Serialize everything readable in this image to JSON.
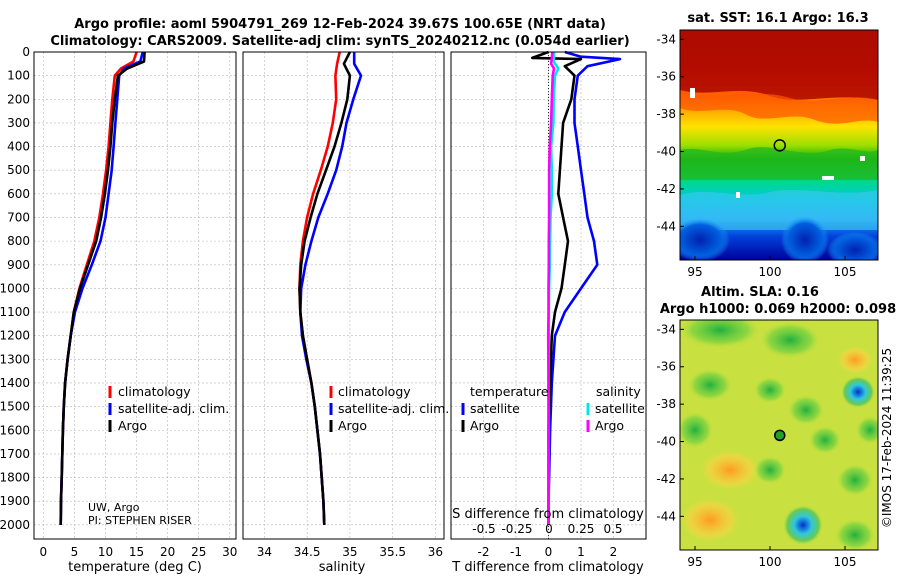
{
  "header": {
    "title_line1": "Argo profile: aoml 5904791_269 12-Feb-2024 39.67S 100.65E (NRT data)",
    "title_line2": "Climatology: CARS2009. Satellite-adj clim: synTS_20240212.nc (0.054d earlier)"
  },
  "chart_data": [
    {
      "type": "line",
      "name": "temperature-profile",
      "xlabel": "temperature (deg C)",
      "xlim": [
        -1.5,
        31
      ],
      "xticks": [
        0,
        5,
        10,
        15,
        20,
        25,
        30
      ],
      "ylim": [
        2060,
        0
      ],
      "yticks": [
        0,
        100,
        200,
        300,
        400,
        500,
        600,
        700,
        800,
        900,
        1000,
        1100,
        1200,
        1300,
        1400,
        1500,
        1600,
        1700,
        1800,
        1900,
        2000
      ],
      "legend": [
        "climatology",
        "satellite-adj. clim.",
        "Argo"
      ],
      "credit": [
        "UW, Argo",
        "PI: STEPHEN RISER"
      ],
      "series": [
        {
          "name": "climatology",
          "color": "#ff0000",
          "x": [
            15.0,
            14.5,
            12.5,
            11.5,
            11.1,
            10.8,
            10.5,
            10.1,
            9.6,
            9.0,
            8.2,
            7.0,
            5.8,
            4.9,
            4.4,
            3.9,
            3.5,
            3.3,
            3.15,
            3.05,
            2.95,
            2.85,
            2.8
          ],
          "y": [
            0,
            40,
            70,
            100,
            200,
            300,
            400,
            500,
            600,
            700,
            800,
            900,
            1000,
            1100,
            1200,
            1300,
            1400,
            1500,
            1600,
            1700,
            1800,
            1900,
            2000
          ]
        },
        {
          "name": "satellite-adj. clim.",
          "color": "#0000ff",
          "x": [
            16.0,
            15.6,
            13.0,
            12.2,
            11.9,
            11.6,
            11.3,
            11.0,
            10.5,
            10.0,
            9.2,
            7.8,
            6.3,
            5.1,
            4.4,
            3.9,
            3.5,
            3.3,
            3.15,
            3.05,
            2.95,
            2.85,
            2.8
          ],
          "y": [
            0,
            40,
            70,
            100,
            200,
            300,
            400,
            500,
            600,
            700,
            800,
            900,
            1000,
            1100,
            1200,
            1300,
            1400,
            1500,
            1600,
            1700,
            1800,
            1900,
            2000
          ]
        },
        {
          "name": "Argo",
          "color": "#000000",
          "x": [
            16.3,
            16.2,
            13.5,
            12.0,
            11.5,
            11.1,
            10.8,
            10.4,
            9.9,
            9.3,
            8.5,
            7.2,
            5.9,
            4.9,
            4.4,
            3.9,
            3.5,
            3.3,
            3.15,
            3.05,
            2.95,
            2.85,
            2.8
          ],
          "y": [
            0,
            40,
            70,
            100,
            200,
            300,
            400,
            500,
            600,
            700,
            800,
            900,
            1000,
            1100,
            1200,
            1300,
            1400,
            1500,
            1600,
            1700,
            1800,
            1900,
            2000
          ]
        }
      ]
    },
    {
      "type": "line",
      "name": "salinity-profile",
      "xlabel": "salinity",
      "xlim": [
        33.75,
        36.1
      ],
      "xticks": [
        34,
        34.5,
        35,
        35.5,
        36
      ],
      "ylim": [
        2060,
        0
      ],
      "legend": [
        "climatology",
        "satellite-adj. clim.",
        "Argo"
      ],
      "series": [
        {
          "name": "climatology",
          "color": "#ff0000",
          "x": [
            34.88,
            34.85,
            34.83,
            34.84,
            34.8,
            34.74,
            34.66,
            34.57,
            34.5,
            34.45,
            34.42,
            34.41,
            34.42,
            34.45,
            34.5,
            34.55,
            34.59,
            34.62,
            34.65,
            34.67,
            34.69,
            34.7
          ],
          "y": [
            0,
            50,
            100,
            200,
            300,
            400,
            500,
            600,
            700,
            800,
            900,
            1000,
            1100,
            1200,
            1300,
            1400,
            1500,
            1600,
            1700,
            1800,
            1900,
            2000
          ]
        },
        {
          "name": "satellite-adj. clim.",
          "color": "#0000ff",
          "x": [
            35.05,
            35.05,
            35.13,
            35.04,
            34.96,
            34.91,
            34.84,
            34.74,
            34.63,
            34.55,
            34.48,
            34.43,
            34.42,
            34.44,
            34.49,
            34.55,
            34.59,
            34.62,
            34.65,
            34.67,
            34.69,
            34.7
          ],
          "y": [
            0,
            50,
            100,
            200,
            300,
            400,
            500,
            600,
            700,
            800,
            900,
            1000,
            1100,
            1200,
            1300,
            1400,
            1500,
            1600,
            1700,
            1800,
            1900,
            2000
          ]
        },
        {
          "name": "Argo",
          "color": "#000000",
          "x": [
            35.0,
            34.93,
            35.0,
            34.97,
            34.9,
            34.82,
            34.72,
            34.62,
            34.54,
            34.47,
            34.43,
            34.41,
            34.42,
            34.45,
            34.5,
            34.55,
            34.59,
            34.62,
            34.65,
            34.67,
            34.69,
            34.7
          ],
          "y": [
            0,
            50,
            100,
            200,
            300,
            400,
            500,
            600,
            700,
            800,
            900,
            1000,
            1100,
            1200,
            1300,
            1400,
            1500,
            1600,
            1700,
            1800,
            1900,
            2000
          ]
        }
      ]
    },
    {
      "type": "line",
      "name": "difference-profile",
      "xlabel": "T difference from climatology",
      "xlabel_top": "S difference from climatology",
      "xlim": [
        -3.0,
        3.0
      ],
      "xticks": [
        -2,
        -1,
        0,
        1,
        2
      ],
      "s_ticks": [
        "-0.5",
        "-0.25",
        "0",
        "0.25",
        "0.5"
      ],
      "ylim": [
        2060,
        0
      ],
      "legend_titles": [
        "temperature",
        "salinity"
      ],
      "legend_temperature": [
        "satellite",
        "Argo"
      ],
      "legend_salinity": [
        "satellite",
        "Argo"
      ],
      "series": [
        {
          "name": "temperature satellite",
          "color": "#0000ff",
          "x": [
            0.5,
            1.0,
            2.2,
            1.2,
            0.9,
            0.8,
            0.8,
            0.9,
            1.0,
            1.1,
            1.2,
            1.4,
            1.5,
            1.0,
            0.5,
            0.2,
            0.1,
            0.05,
            0.02,
            0.0,
            0.0
          ],
          "y": [
            0,
            20,
            30,
            60,
            100,
            200,
            300,
            400,
            500,
            600,
            700,
            800,
            900,
            1000,
            1100,
            1200,
            1400,
            1600,
            1800,
            1900,
            2000
          ]
        },
        {
          "name": "temperature Argo",
          "color": "#000000",
          "x": [
            0.0,
            -0.5,
            1.0,
            0.5,
            0.8,
            0.7,
            0.45,
            0.4,
            0.35,
            0.3,
            0.45,
            0.6,
            0.5,
            0.4,
            0.2,
            0.1,
            0.05,
            0.0,
            0.0,
            0.0
          ],
          "y": [
            0,
            25,
            30,
            60,
            100,
            200,
            300,
            400,
            500,
            600,
            700,
            800,
            900,
            1000,
            1100,
            1200,
            1400,
            1600,
            1800,
            2000
          ]
        },
        {
          "name": "salinity satellite",
          "color": "#00e5e5",
          "x": [
            0.17,
            0.16,
            0.3,
            0.2,
            0.16,
            0.15,
            0.08,
            0.1,
            0.1,
            0.06,
            0.05,
            0.04,
            0.02,
            0.01,
            0.01,
            0.0,
            0.0,
            0.0,
            0.0
          ],
          "y": [
            0,
            40,
            70,
            100,
            200,
            300,
            400,
            500,
            600,
            700,
            800,
            900,
            1000,
            1100,
            1200,
            1400,
            1600,
            1800,
            2000
          ]
        },
        {
          "name": "salinity Argo",
          "color": "#ff00ff",
          "x": [
            0.12,
            0.08,
            0.17,
            0.13,
            0.1,
            0.08,
            0.04,
            0.02,
            0.02,
            0.02,
            0.01,
            0.01,
            0.0,
            0.0,
            -0.01,
            0.0,
            0.0,
            0.0
          ],
          "y": [
            0,
            50,
            70,
            100,
            200,
            300,
            400,
            500,
            600,
            700,
            800,
            900,
            1000,
            1100,
            1200,
            1400,
            1600,
            2000
          ]
        }
      ]
    },
    {
      "type": "heatmap",
      "name": "sst-map",
      "title": "sat. SST: 16.1 Argo: 16.3",
      "xlim": [
        94,
        107.2
      ],
      "ylim": [
        -45.8,
        -33.5
      ],
      "xticks": [
        95,
        100,
        105
      ],
      "yticks": [
        -34,
        -36,
        -38,
        -40,
        -42,
        -44
      ],
      "marker": {
        "lon": 100.65,
        "lat": -39.67
      }
    },
    {
      "type": "heatmap",
      "name": "sla-map",
      "title_line1": "Altim. SLA: 0.16",
      "title_line2": "Argo h1000: 0.069 h2000: 0.098",
      "xlim": [
        94,
        107.2
      ],
      "ylim": [
        -45.8,
        -33.5
      ],
      "xticks": [
        95,
        100,
        105
      ],
      "yticks": [
        -34,
        -36,
        -38,
        -40,
        -42,
        -44
      ],
      "marker": {
        "lon": 100.65,
        "lat": -39.67
      }
    }
  ],
  "footer": {
    "stamp": "©IMOS 17-Feb-2024 11:39:25"
  }
}
